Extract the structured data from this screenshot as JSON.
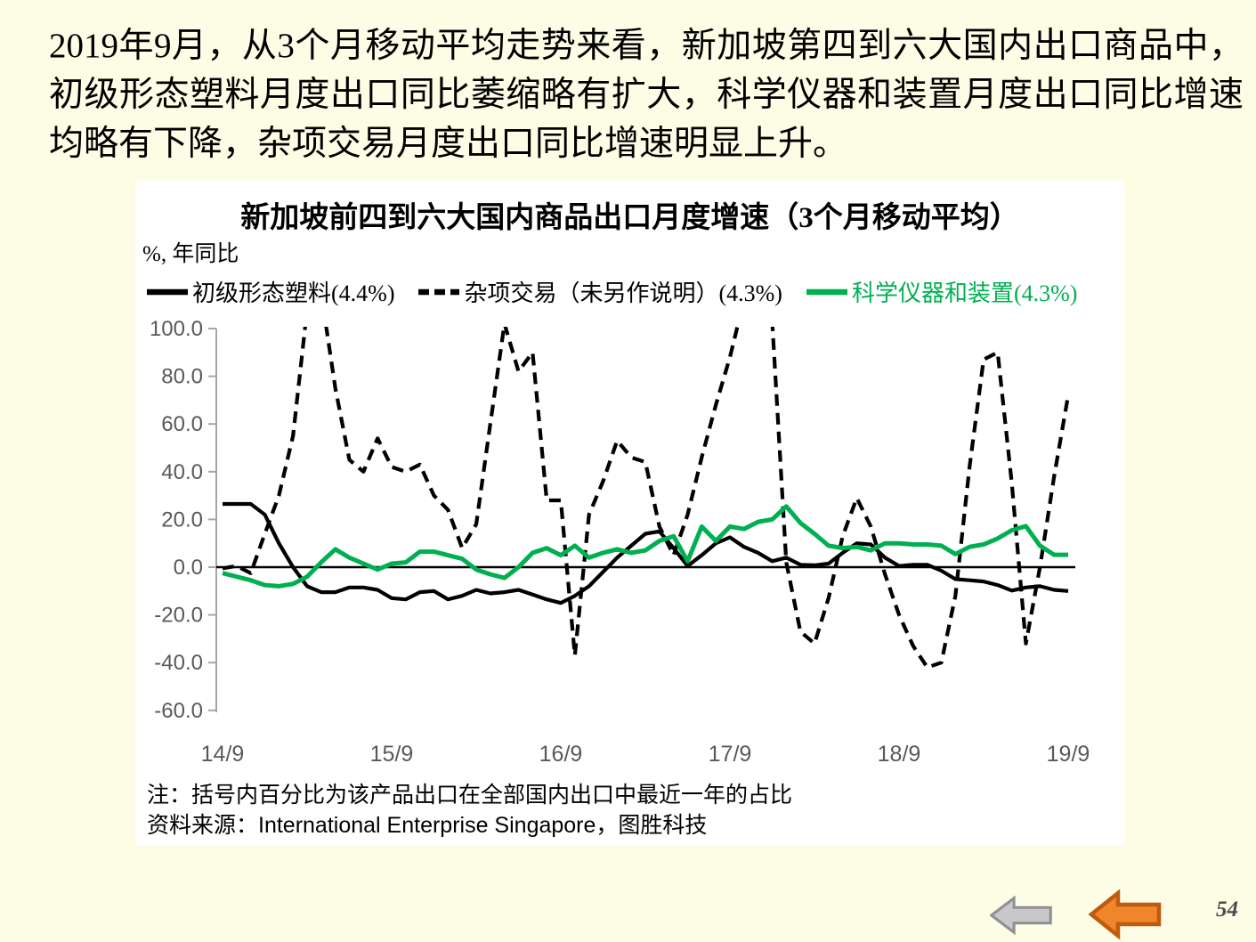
{
  "page": {
    "background_color": "#FDFDE6",
    "page_number": "54",
    "intro_text": "2019年9月，从3个月移动平均走势来看，新加坡第四到六大国内出口商品中，初级形态塑料月度出口同比萎缩略有扩大，科学仪器和装置月度出口同比增速均略有下降，杂项交易月度出口同比增速明显上升。"
  },
  "chart": {
    "panel_background": "#FFFFFF",
    "title": "新加坡前四到六大国内商品出口月度增速（3个月移动平均）",
    "unit_label": "%, 年同比",
    "note": "注：括号内百分比为该产品出口在全部国内出口中最近一年的占比",
    "source": "资料来源：International Enterprise Singapore，图胜科技",
    "axis_color": "#A6A6A6",
    "tick_label_color": "#595959",
    "zero_line_color": "#000000"
  },
  "chart_data": {
    "type": "line",
    "title": "新加坡前四到六大国内商品出口月度增速（3个月移动平均）",
    "ylabel": "%, 年同比",
    "ylim": [
      -60,
      100
    ],
    "yticks": [
      100,
      80,
      60,
      40,
      20,
      0,
      -20,
      -40,
      -60
    ],
    "ytick_labels": [
      "100.0",
      "80.0",
      "60.0",
      "40.0",
      "20.0",
      "0.0",
      "-20.0",
      "-40.0",
      "-60.0"
    ],
    "xtick_labels": [
      "14/9",
      "15/9",
      "16/9",
      "17/9",
      "18/9",
      "19/9"
    ],
    "xtick_month_positions": [
      0,
      12,
      24,
      36,
      48,
      60
    ],
    "x_start": "2014-09",
    "x_end": "2019-09",
    "frequency": "monthly",
    "grid": false,
    "legend_position": "top",
    "series": [
      {
        "id": "plastics",
        "name": "初级形态塑料(4.4%)",
        "color": "#000000",
        "label_color": "#000000",
        "style": "solid",
        "values": [
          26.5,
          26.5,
          26.5,
          22,
          10,
          0,
          -8,
          -10.5,
          -10.5,
          -8.5,
          -8.5,
          -9.5,
          -13,
          -13.5,
          -10.5,
          -10,
          -13.5,
          -12,
          -9.5,
          -11,
          -10.5,
          -9.5,
          -11.5,
          -13.5,
          -15,
          -12,
          -8,
          -2,
          4,
          9,
          14,
          15,
          8,
          0.5,
          5,
          10,
          12.5,
          8.5,
          6,
          2.5,
          4,
          1,
          0.8,
          1.5,
          6,
          10,
          9.5,
          4,
          0.5,
          1,
          1,
          -1.5,
          -5,
          -5.5,
          -6,
          -7.5,
          -9.8,
          -8.5,
          -8,
          -9.5,
          -10
        ]
      },
      {
        "id": "misc-transactions",
        "name": "杂项交易（未另作说明）(4.3%)",
        "color": "#000000",
        "label_color": "#000000",
        "style": "dashed",
        "values": [
          -0.5,
          0.5,
          -2.5,
          14,
          30,
          55,
          108,
          115,
          75,
          45,
          40,
          54,
          42,
          40,
          43,
          30,
          24,
          8,
          18,
          60,
          102,
          82,
          90,
          28,
          28,
          -37,
          22,
          36,
          53,
          46,
          44,
          17,
          5,
          22,
          46,
          68,
          88,
          112,
          110,
          103,
          2,
          -27,
          -32,
          -13,
          13,
          29,
          17,
          -3,
          -20,
          -33,
          -42,
          -40,
          -12,
          42,
          87,
          90,
          35,
          -32,
          0,
          38,
          72
        ]
      },
      {
        "id": "scientific-instruments",
        "name": "科学仪器和装置(4.3%)",
        "color": "#00B050",
        "label_color": "#00B050",
        "style": "solid",
        "values": [
          -2.5,
          -4,
          -5.5,
          -7.5,
          -8,
          -7,
          -4,
          2,
          7.5,
          4,
          1.5,
          -1,
          1.5,
          2,
          6.5,
          6.5,
          5,
          3.5,
          -1,
          -3,
          -4.5,
          0,
          6,
          8,
          5,
          9,
          4,
          6,
          7.5,
          6,
          7,
          11,
          13,
          2.5,
          17,
          11,
          17,
          16,
          19,
          20,
          25.5,
          18.5,
          14,
          9,
          8,
          8.5,
          7,
          10,
          10,
          9.5,
          9.5,
          9,
          5.5,
          8.5,
          9.5,
          12,
          15.5,
          17.2,
          9,
          5.2,
          5.2
        ]
      }
    ]
  },
  "nav": {
    "gray_arrow_fill": "#C8C8C8",
    "gray_arrow_stroke": "#8F8F96",
    "orange_arrow_fill": "#F0862C",
    "orange_arrow_stroke": "#BF5B0E"
  }
}
